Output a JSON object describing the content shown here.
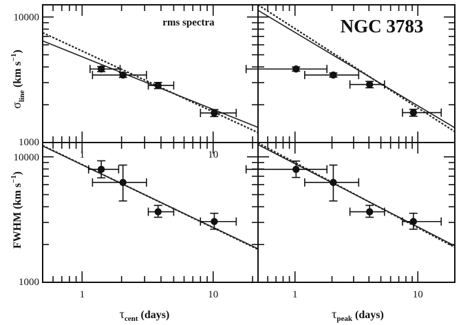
{
  "figure": {
    "object_label": "NGC 3783",
    "spectrum_label": "rms spectra",
    "x_labels": {
      "cent": {
        "tau": "τ",
        "sub": "cent",
        "rest": " (days)"
      },
      "peak": {
        "tau": "τ",
        "sub": "peak",
        "rest": " (days)"
      }
    },
    "y_labels": {
      "sigma": {
        "sym": "σ",
        "sub": "line",
        "rest": " (km s",
        "sup": "−1",
        "close": ")"
      },
      "fwhm": {
        "sym": "FWHM",
        "sub": "",
        "rest": " (km s",
        "sup": "−1",
        "close": ")"
      }
    }
  },
  "chart_data": [
    {
      "type": "scatter",
      "panel": "top-left",
      "x_scale": "log",
      "y_scale": "log",
      "xlim": [
        0.5,
        22
      ],
      "ylim": [
        1000,
        12500
      ],
      "xticks": [
        "1",
        "10"
      ],
      "yticks": [
        "1000",
        "10000"
      ],
      "xlabel": "",
      "ylabel": "σline (km s−1)",
      "annotation": "rms spectra",
      "points": [
        {
          "x": 1.4,
          "y": 3850,
          "xerr": [
            0.25,
            0.55
          ],
          "yerr": [
            180,
            180
          ]
        },
        {
          "x": 2.05,
          "y": 3450,
          "xerr": [
            0.85,
            1.05
          ],
          "yerr": [
            150,
            150
          ]
        },
        {
          "x": 3.8,
          "y": 2850,
          "xerr": [
            0.6,
            1.2
          ],
          "yerr": [
            160,
            160
          ]
        },
        {
          "x": 10.2,
          "y": 1720,
          "xerr": [
            2.2,
            4.8
          ],
          "yerr": [
            110,
            110
          ]
        }
      ],
      "fits": [
        {
          "style": "solid",
          "x": [
            0.5,
            22
          ],
          "y": [
            6450,
            1320
          ]
        },
        {
          "style": "dotted",
          "x": [
            0.5,
            22
          ],
          "y": [
            7500,
            1200
          ]
        }
      ]
    },
    {
      "type": "scatter",
      "panel": "top-right",
      "x_scale": "log",
      "y_scale": "log",
      "xlim": [
        0.5,
        20
      ],
      "ylim": [
        1000,
        12500
      ],
      "xticks": [],
      "yticks": [],
      "xlabel": "",
      "ylabel": "",
      "annotation": "NGC 3783",
      "points": [
        {
          "x": 1.02,
          "y": 3850,
          "xerr": [
            0.62,
            0.8
          ],
          "yerr": [
            150,
            150
          ]
        },
        {
          "x": 2.05,
          "y": 3450,
          "xerr": [
            0.85,
            1.25
          ],
          "yerr": [
            130,
            130
          ]
        },
        {
          "x": 4.05,
          "y": 2900,
          "xerr": [
            1.25,
            1.3
          ],
          "yerr": [
            170,
            170
          ]
        },
        {
          "x": 9.2,
          "y": 1730,
          "xerr": [
            1.7,
            6.3
          ],
          "yerr": [
            110,
            110
          ]
        }
      ],
      "fits": [
        {
          "style": "solid",
          "x": [
            0.5,
            20
          ],
          "y": [
            11300,
            1310
          ]
        },
        {
          "style": "dotted",
          "x": [
            0.5,
            20
          ],
          "y": [
            12500,
            1220
          ]
        }
      ]
    },
    {
      "type": "scatter",
      "panel": "bottom-left",
      "x_scale": "log",
      "y_scale": "log",
      "xlim": [
        0.5,
        22
      ],
      "ylim": [
        1000,
        13000
      ],
      "xticks": [
        "1",
        "10"
      ],
      "yticks": [
        "1000",
        "10000"
      ],
      "xlabel": "τcent (days)",
      "ylabel": "FWHM (km s−1)",
      "points": [
        {
          "x": 1.4,
          "y": 7950,
          "xerr": [
            0.28,
            0.5
          ],
          "yerr": [
            1150,
            1350
          ]
        },
        {
          "x": 2.05,
          "y": 6250,
          "xerr": [
            0.85,
            1.05
          ],
          "yerr": [
            1800,
            2350
          ]
        },
        {
          "x": 3.8,
          "y": 3650,
          "xerr": [
            0.6,
            1.2
          ],
          "yerr": [
            350,
            450
          ]
        },
        {
          "x": 10.2,
          "y": 3050,
          "xerr": [
            2.2,
            4.8
          ],
          "yerr": [
            400,
            500
          ]
        }
      ],
      "fits": [
        {
          "style": "solid",
          "x": [
            0.5,
            22
          ],
          "y": [
            12200,
            1850
          ]
        },
        {
          "style": "dotted",
          "x": [
            0.5,
            22
          ],
          "y": [
            12300,
            1830
          ]
        }
      ]
    },
    {
      "type": "scatter",
      "panel": "bottom-right",
      "x_scale": "log",
      "y_scale": "log",
      "xlim": [
        0.5,
        20
      ],
      "ylim": [
        1000,
        13000
      ],
      "xticks": [
        "1",
        "10"
      ],
      "yticks": [],
      "xlabel": "τpeak (days)",
      "ylabel": "",
      "points": [
        {
          "x": 1.02,
          "y": 7950,
          "xerr": [
            0.62,
            0.8
          ],
          "yerr": [
            1100,
            1300
          ]
        },
        {
          "x": 2.05,
          "y": 6250,
          "xerr": [
            0.85,
            1.25
          ],
          "yerr": [
            1800,
            2350
          ]
        },
        {
          "x": 4.05,
          "y": 3650,
          "xerr": [
            1.25,
            1.3
          ],
          "yerr": [
            350,
            450
          ]
        },
        {
          "x": 9.2,
          "y": 3050,
          "xerr": [
            1.7,
            6.3
          ],
          "yerr": [
            400,
            500
          ]
        }
      ],
      "fits": [
        {
          "style": "solid",
          "x": [
            0.5,
            20
          ],
          "y": [
            12500,
            1950
          ]
        },
        {
          "style": "dotted",
          "x": [
            0.5,
            20
          ],
          "y": [
            12900,
            1900
          ]
        }
      ]
    }
  ]
}
